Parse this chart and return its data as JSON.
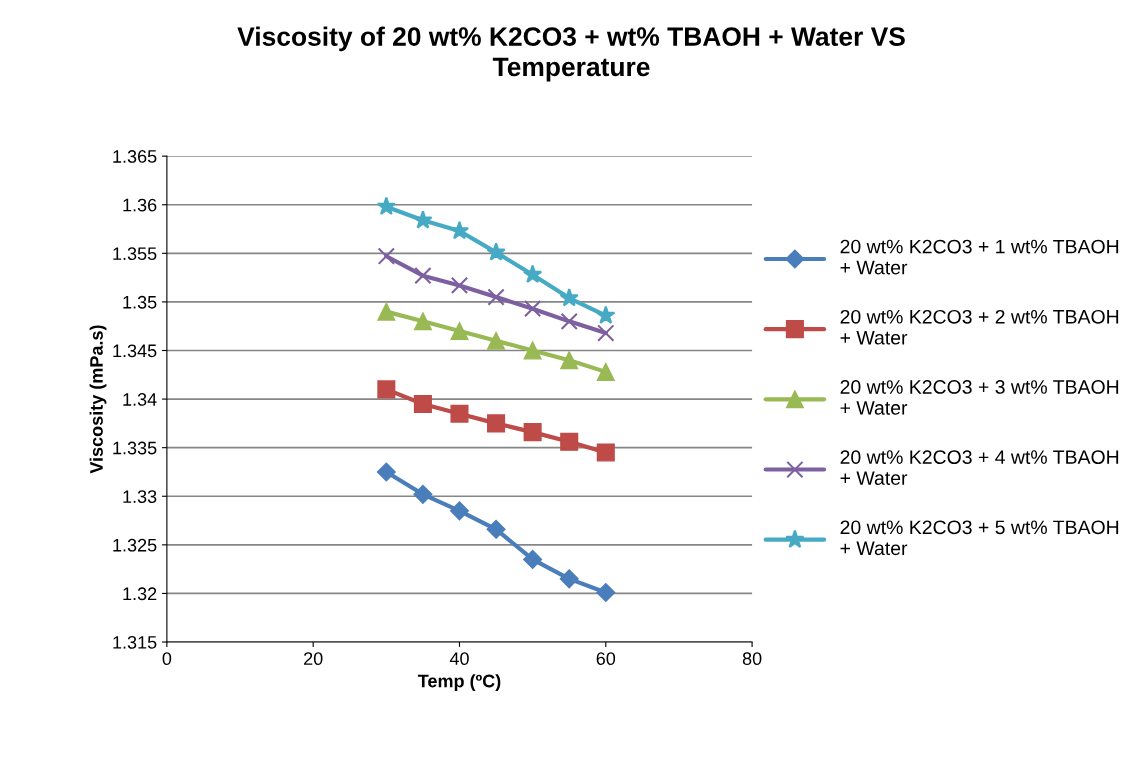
{
  "chart_data": {
    "type": "line",
    "title": "Viscosity of 20 wt% K2CO3 + wt% TBAOH + Water VS\nTemperature",
    "xlabel": "Temp (ºC)",
    "ylabel": "Viscosity (mPa.s)",
    "x": [
      30,
      35,
      40,
      45,
      50,
      55,
      60
    ],
    "series": [
      {
        "name": "20 wt% K2CO3 + 1 wt% TBAOH\n+ Water",
        "color": "#4a7ebb",
        "marker": "diamond",
        "values": [
          1.3325,
          1.3302,
          1.3285,
          1.3266,
          1.3235,
          1.3215,
          1.3201
        ]
      },
      {
        "name": "20 wt% K2CO3 + 2 wt% TBAOH\n+ Water",
        "color": "#be4b48",
        "marker": "square",
        "values": [
          1.341,
          1.3395,
          1.3385,
          1.3375,
          1.3366,
          1.3356,
          1.3345
        ]
      },
      {
        "name": "20 wt% K2CO3 + 3 wt% TBAOH\n+ Water",
        "color": "#98b954",
        "marker": "triangle",
        "values": [
          1.349,
          1.348,
          1.347,
          1.346,
          1.345,
          1.344,
          1.3428
        ]
      },
      {
        "name": "20 wt% K2CO3 + 4 wt% TBAOH\n+ Water",
        "color": "#7d60a0",
        "marker": "cross",
        "values": [
          1.3547,
          1.3527,
          1.3517,
          1.3505,
          1.3493,
          1.348,
          1.3468
        ]
      },
      {
        "name": "20 wt% K2CO3 + 5 wt% TBAOH\n+ Water",
        "color": "#46aac5",
        "marker": "star",
        "values": [
          1.3598,
          1.3584,
          1.3573,
          1.3551,
          1.3528,
          1.3504,
          1.3486
        ]
      }
    ],
    "xlim": [
      0,
      80
    ],
    "xticks": [
      0,
      20,
      40,
      60,
      80
    ],
    "ylim": [
      1.315,
      1.365
    ],
    "yticks": [
      1.315,
      1.32,
      1.325,
      1.33,
      1.335,
      1.34,
      1.345,
      1.35,
      1.355,
      1.36,
      1.365
    ],
    "grid": "y",
    "legend": "right",
    "line_style": "solid"
  }
}
